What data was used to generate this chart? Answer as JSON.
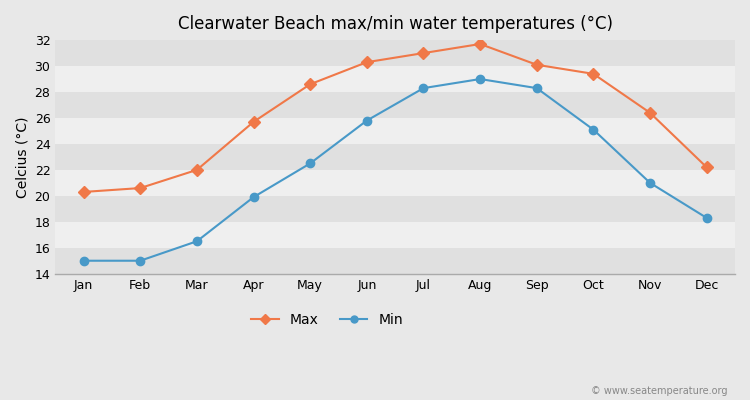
{
  "title": "Clearwater Beach max/min water temperatures (°C)",
  "ylabel": "Celcius (°C)",
  "months": [
    "Jan",
    "Feb",
    "Mar",
    "Apr",
    "May",
    "Jun",
    "Jul",
    "Aug",
    "Sep",
    "Oct",
    "Nov",
    "Dec"
  ],
  "max_temps": [
    20.3,
    20.6,
    22.0,
    25.7,
    28.6,
    30.3,
    31.0,
    31.7,
    30.1,
    29.4,
    26.4,
    22.2
  ],
  "min_temps": [
    15.0,
    15.0,
    16.5,
    19.9,
    22.5,
    25.8,
    28.3,
    29.0,
    28.3,
    25.1,
    21.0,
    18.3
  ],
  "max_color": "#f07848",
  "min_color": "#4899c8",
  "bg_color": "#e8e8e8",
  "band_light": "#efefef",
  "band_dark": "#e0e0e0",
  "ylim": [
    14,
    32
  ],
  "yticks": [
    14,
    16,
    18,
    20,
    22,
    24,
    26,
    28,
    30,
    32
  ],
  "watermark": "© www.seatemperature.org",
  "legend_labels": [
    "Max",
    "Min"
  ]
}
